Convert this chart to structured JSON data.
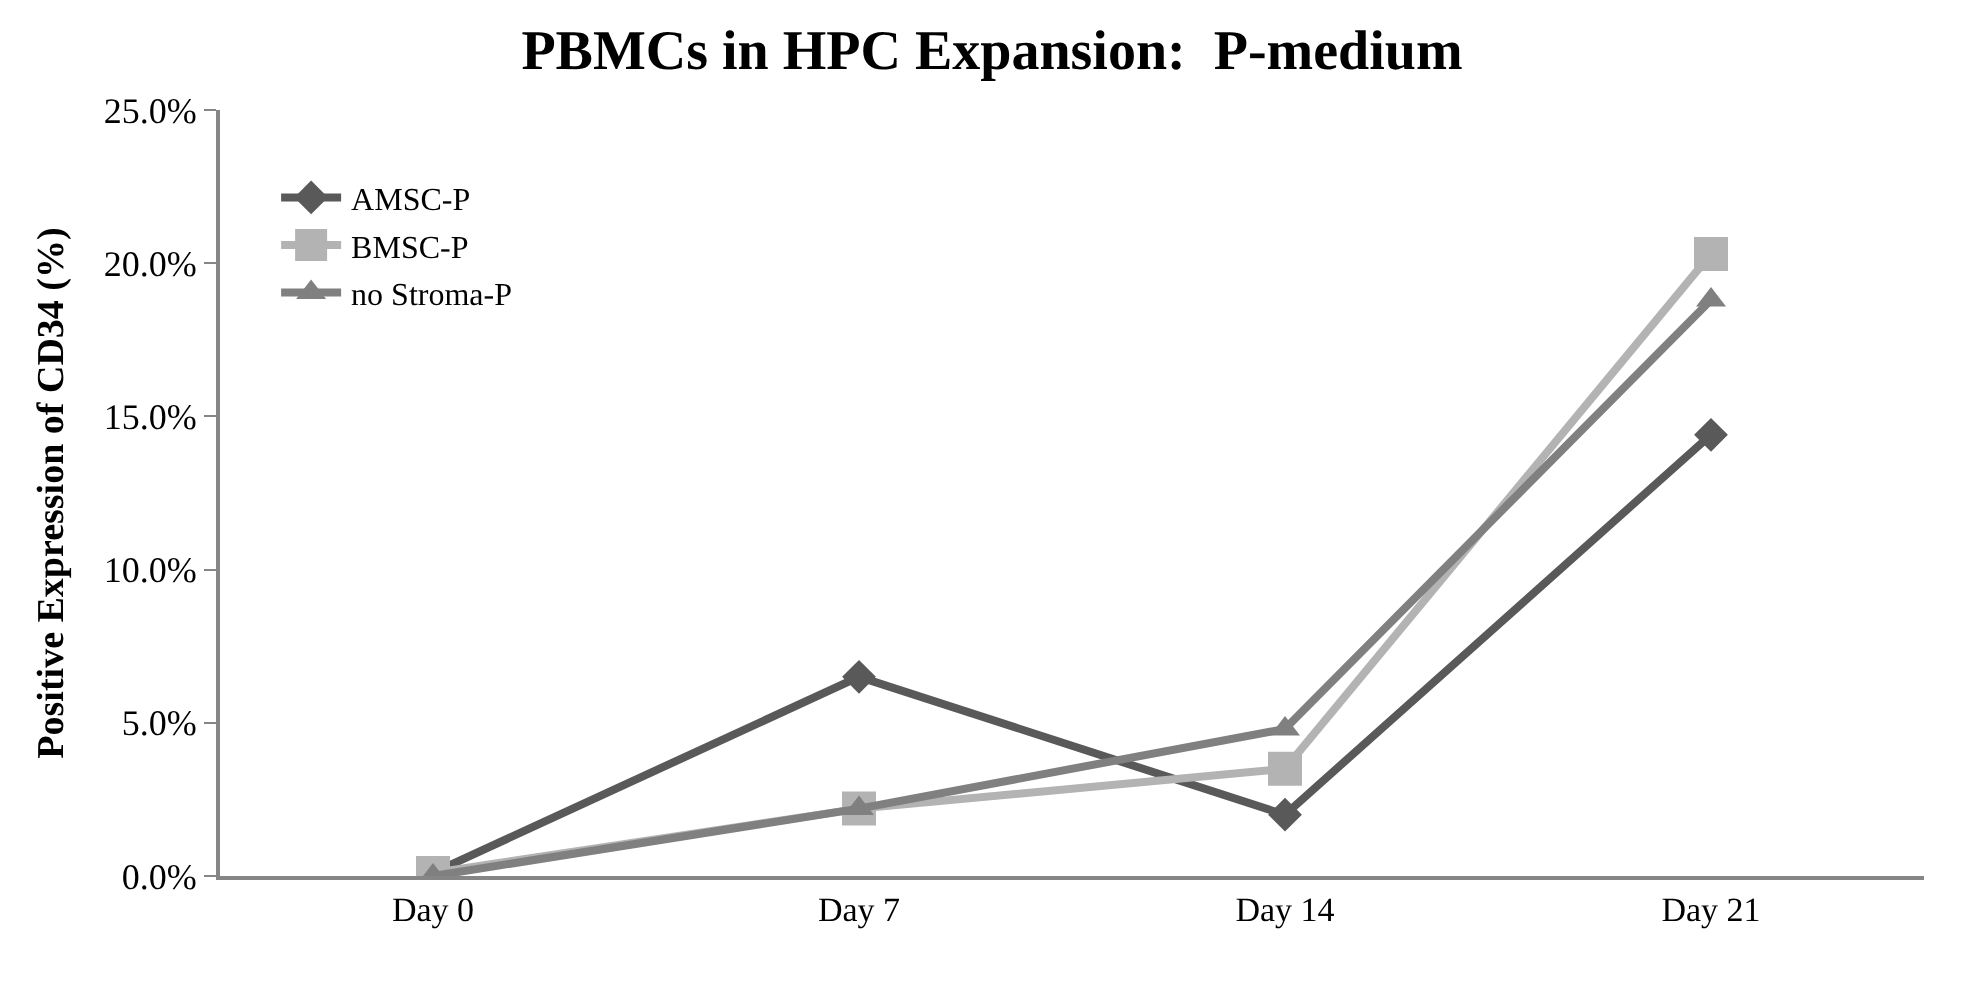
{
  "chart_data": {
    "type": "line",
    "title": "PBMCs in HPC Expansion:  P-medium",
    "ylabel": "Positive Expression of CD34 (%)",
    "categories": [
      "Day 0",
      "Day 7",
      "Day 14",
      "Day 21"
    ],
    "series": [
      {
        "name": "AMSC-P",
        "color": "#595959",
        "marker": "diamond",
        "values": [
          0.1,
          6.5,
          2.0,
          14.4
        ]
      },
      {
        "name": "BMSC-P",
        "color": "#b3b3b3",
        "marker": "square",
        "values": [
          0.1,
          2.2,
          3.5,
          20.3
        ]
      },
      {
        "name": "no Stroma-P",
        "color": "#808080",
        "marker": "triangle",
        "values": [
          0.0,
          2.2,
          4.8,
          18.8
        ]
      }
    ],
    "ylim": [
      0,
      25
    ],
    "yticks": [
      {
        "value": 0,
        "label": "0.0%"
      },
      {
        "value": 5,
        "label": "5.0%"
      },
      {
        "value": 10,
        "label": "10.0%"
      },
      {
        "value": 15,
        "label": "15.0%"
      },
      {
        "value": 20,
        "label": "20.0%"
      },
      {
        "value": 25,
        "label": "25.0%"
      }
    ],
    "legend": "top left",
    "line_style": "solid"
  }
}
